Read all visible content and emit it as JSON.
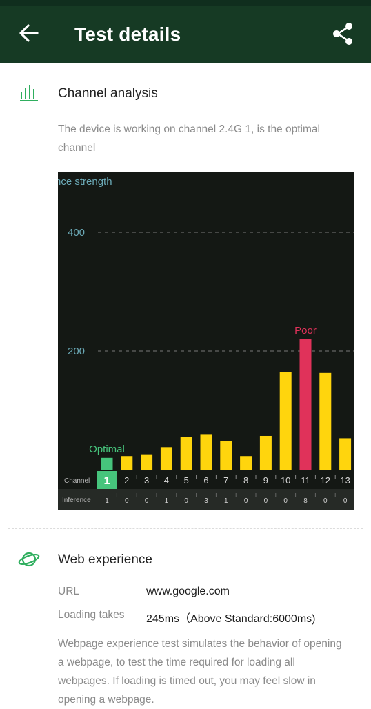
{
  "header": {
    "title": "Test details",
    "back_icon": "arrow-left-icon",
    "share_icon": "share-icon",
    "background": "#163a24"
  },
  "channel_analysis": {
    "title": "Channel analysis",
    "icon": "bar-signal-icon",
    "description": "The device is working on channel 2.4G 1, is the optimal channel"
  },
  "chart_data": {
    "type": "bar",
    "ylabel": "nce strength",
    "y_ticks": [
      "400",
      "200"
    ],
    "ylim": [
      0,
      470
    ],
    "grid": "dashed horizontal at 200 and 400",
    "categories": [
      "1",
      "2",
      "3",
      "4",
      "5",
      "6",
      "7",
      "8",
      "9",
      "10",
      "11",
      "12",
      "13"
    ],
    "values": [
      20,
      23,
      26,
      38,
      55,
      60,
      48,
      23,
      57,
      165,
      220,
      163,
      53
    ],
    "interference": [
      "1",
      "0",
      "0",
      "1",
      "0",
      "3",
      "1",
      "0",
      "0",
      "0",
      "8",
      "0",
      "0"
    ],
    "row_labels": {
      "channel": "Channel",
      "inference": "Inference"
    },
    "optimal": {
      "channel": "1",
      "label": "Optimal"
    },
    "poor": {
      "channel": "11",
      "label": "Poor"
    },
    "colors": {
      "optimal": "#46c47c",
      "normal": "#ffd50d",
      "poor": "#e0325a",
      "axis_text": "#6ba9b6",
      "background": "#141814"
    }
  },
  "web_experience": {
    "title": "Web experience",
    "icon": "planet-icon",
    "url_label": "URL",
    "url_value": "www.google.com",
    "loading_label": "Loading takes",
    "loading_value": "245ms（Above Standard:6000ms)",
    "description": "Webpage experience test simulates the behavior of opening a webpage, to test the time required for loading all webpages. If loading is timed out, you may feel slow in opening a webpage."
  }
}
